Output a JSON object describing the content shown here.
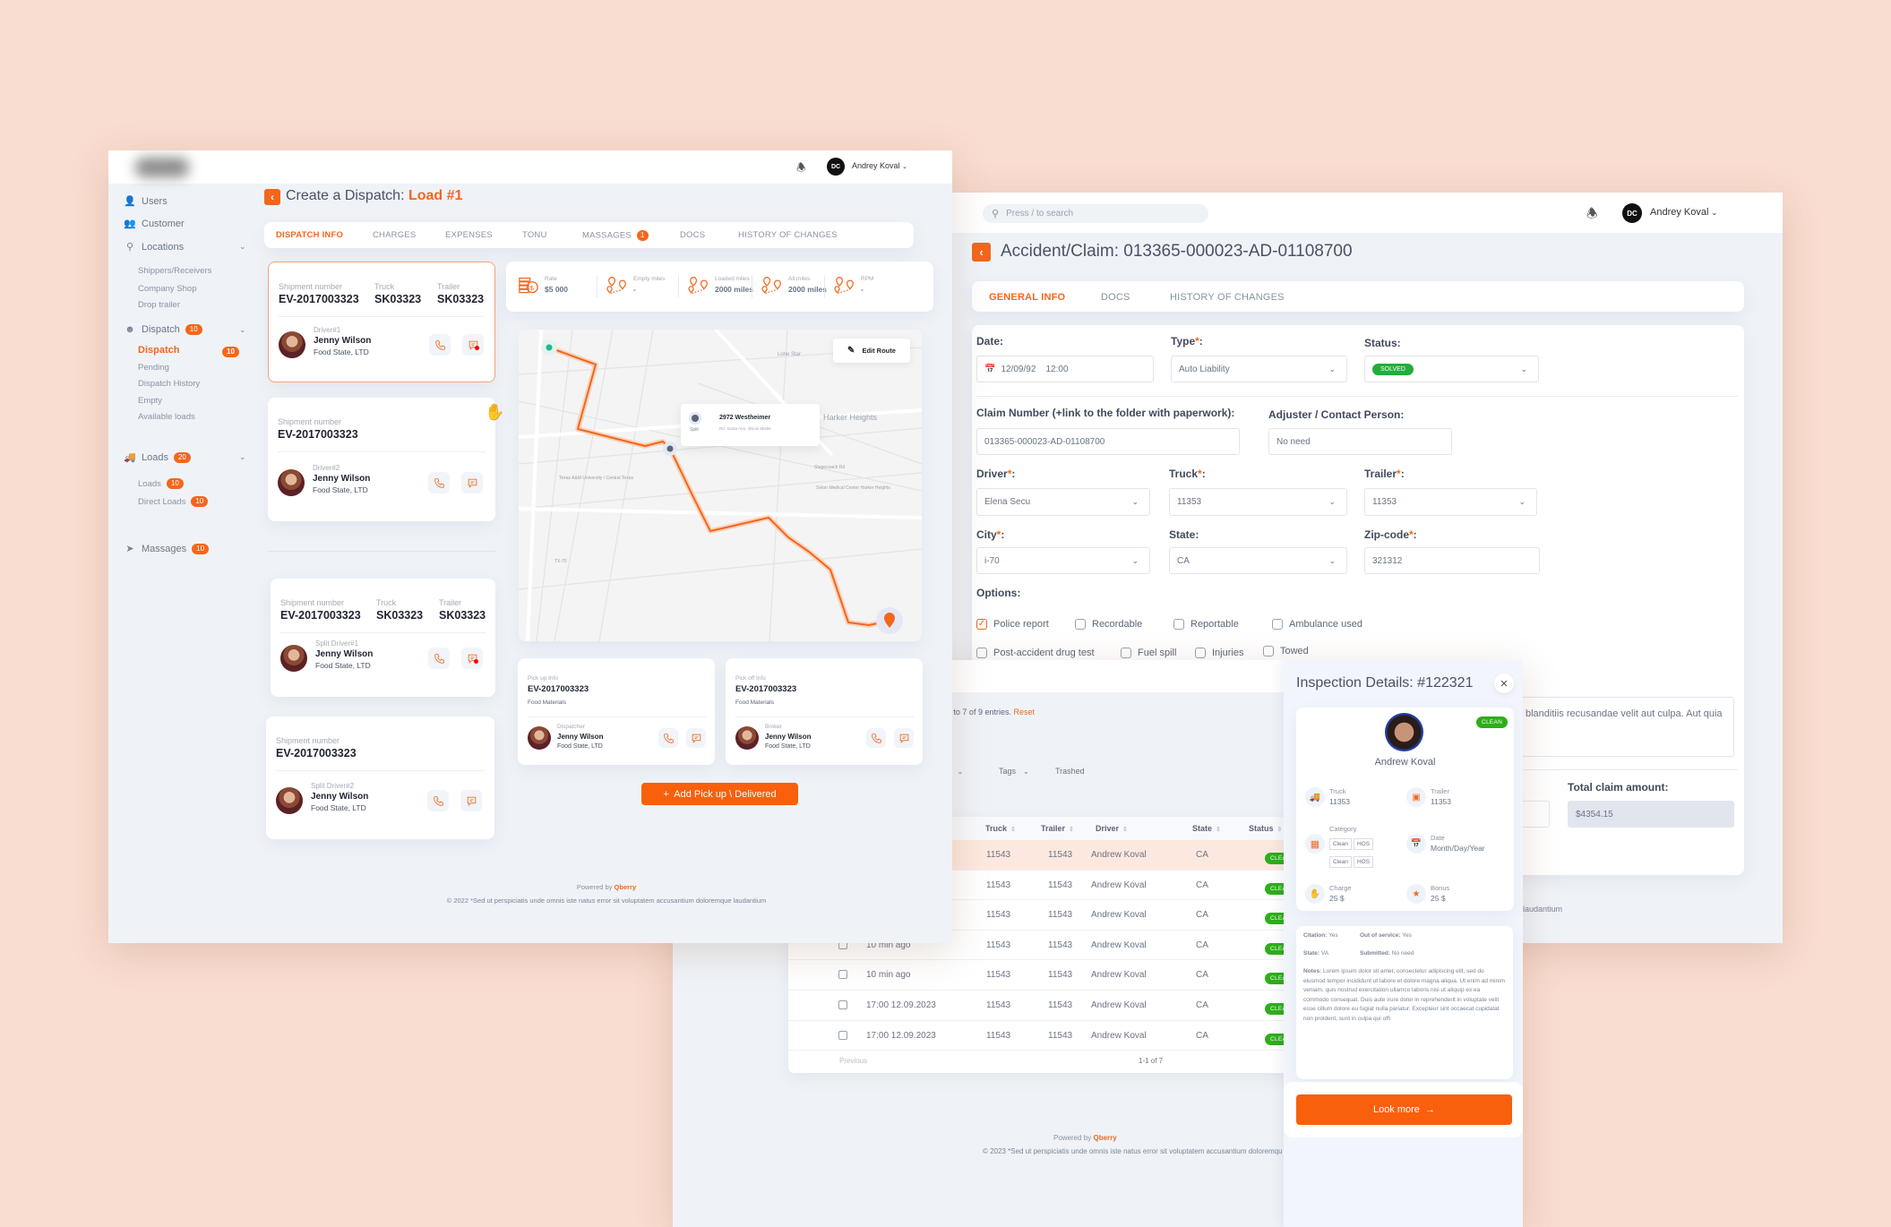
{
  "left_window": {
    "header": {
      "user_initials": "DC",
      "user_name": "Andrey Koval"
    },
    "sidebar": [
      {
        "label": "Users",
        "icon": "users-icon"
      },
      {
        "label": "Customer",
        "icon": "customer-icon"
      },
      {
        "label": "Locations",
        "icon": "location-icon",
        "chevron": true
      },
      {
        "label": "Shippers/Receivers",
        "sub": true
      },
      {
        "label": "Company Shop",
        "sub": true
      },
      {
        "label": "Drop trailer",
        "sub": true
      },
      {
        "label": "Dispatch",
        "icon": "dispatch-icon",
        "badge": "10",
        "chevron": true
      },
      {
        "label": "Dispatch",
        "sub": true,
        "active": true,
        "badge": "10"
      },
      {
        "label": "Pending",
        "sub": true
      },
      {
        "label": "Dispatch History",
        "sub": true
      },
      {
        "label": "Empty",
        "sub": true
      },
      {
        "label": "Available loads",
        "sub": true
      },
      {
        "label": "Loads",
        "icon": "truck-icon",
        "badge": "20",
        "chevron": true
      },
      {
        "label": "Loads",
        "sub": true,
        "badge": "10"
      },
      {
        "label": "Direct Loads",
        "sub": true,
        "badge": "10"
      },
      {
        "label": "Massages",
        "icon": "send-icon",
        "badge": "10"
      }
    ],
    "title_prefix": "Create a Dispatch:",
    "title_load": "Load #1",
    "tabs": [
      {
        "label": "DISPATCH INFO",
        "active": true
      },
      {
        "label": "CHARGES"
      },
      {
        "label": "EXPENSES"
      },
      {
        "label": "TONU"
      },
      {
        "label": "MASSAGES",
        "badge": "1"
      },
      {
        "label": "DOCS"
      },
      {
        "label": "HISTORY OF CHANGES"
      }
    ],
    "driver_cards": [
      {
        "shipment_label": "Shipment number",
        "shipment": "EV-2017003323",
        "truck_label": "Truck",
        "truck": "SK03323",
        "trailer_label": "Trailer",
        "trailer": "SK03323",
        "role": "Driver#1",
        "name": "Jenny Wilson",
        "company": "Food State, LTD",
        "unread": true,
        "selected": true
      },
      {
        "shipment_label": "Shipment number",
        "shipment": "EV-2017003323",
        "role": "Driver#2",
        "name": "Jenny Wilson",
        "company": "Food State, LTD"
      },
      {
        "shipment_label": "Shipment number",
        "shipment": "EV-2017003323",
        "truck_label": "Truck",
        "truck": "SK03323",
        "trailer_label": "Trailer",
        "trailer": "SK03323",
        "role": "Split Driver#1",
        "name": "Jenny Wilson",
        "company": "Food State, LTD",
        "unread": true
      },
      {
        "shipment_label": "Shipment number",
        "shipment": "EV-2017003323",
        "role": "Split Driver#2",
        "name": "Jenny Wilson",
        "company": "Food State, LTD"
      }
    ],
    "stats": [
      {
        "label": "Rate",
        "value": "$5 000",
        "icon": "money-icon"
      },
      {
        "label": "Empty miles",
        "value": "-",
        "icon": "route-icon"
      },
      {
        "label": "Loaded miles",
        "value": "2000 miles",
        "icon": "route-icon"
      },
      {
        "label": "All miles",
        "value": "2000 miles",
        "icon": "route-icon"
      },
      {
        "label": "RPM",
        "value": "-",
        "icon": "route-icon"
      }
    ],
    "map": {
      "edit_route": "Edit Route",
      "popup_title": "2972 Westheimer",
      "popup_sub": "Rd. Santa Ana, Illinois 85486",
      "popup_tag": "Split",
      "place_labels": [
        "Harker Heights",
        "Lone Star",
        "Texas A&M University / Central Texas",
        "Seton Medical Center Harker Heights",
        "Stagecoach Rd",
        "TX-75"
      ]
    },
    "stop_cards": [
      {
        "label": "Pick up Info",
        "number": "EV-2017003323",
        "cargo": "Food Materials",
        "role": "Dispatcher",
        "name": "Jenny Wilson",
        "company": "Food State, LTD"
      },
      {
        "label": "Pick off Info",
        "number": "EV-2017003323",
        "cargo": "Food Materials",
        "role": "Broker",
        "name": "Jenny Wilson",
        "company": "Food State, LTD"
      }
    ],
    "add_button": "+  Add Pick up \\ Delivered",
    "footer": {
      "powered_by": "Powered by",
      "brand": "Qberry",
      "copyright": "© 2022 *Sed ut perspiciatis unde omnis iste natus error sit voluptatem accusantium doloremque laudantium"
    }
  },
  "right_window": {
    "search_placeholder": "Press / to search",
    "header": {
      "user_initials": "DC",
      "user_name": "Andrey Koval"
    },
    "title": "Accident/Claim: 013365-000023-AD-01108700",
    "tabs": [
      {
        "label": "GENERAL INFO",
        "active": true
      },
      {
        "label": "DOCS"
      },
      {
        "label": "HISTORY OF CHANGES"
      }
    ],
    "form": {
      "date_label": "Date:",
      "date_value": "12/09/92    12:00",
      "type_label": "Type",
      "type_value": "Auto Liability",
      "status_label": "Status:",
      "status_value": "SOLVED",
      "claim_label": "Claim Number (+link to the folder with paperwork):",
      "claim_value": "013365-000023-AD-01108700",
      "adjuster_label": "Adjuster / Contact Person:",
      "adjuster_value": "No need",
      "driver_label": "Driver",
      "driver_value": "Elena Secu",
      "truck_label": "Truck",
      "truck_value": "11353",
      "trailer_label": "Trailer",
      "trailer_value": "11353",
      "city_label": "City",
      "city_value": "i-70",
      "state_label": "State:",
      "state_value": "CA",
      "zip_label": "Zip-code",
      "zip_value": "321312",
      "options_label": "Options:",
      "options": [
        {
          "label": "Police report",
          "checked": true
        },
        {
          "label": "Recordable",
          "checked": false
        },
        {
          "label": "Reportable",
          "checked": false
        },
        {
          "label": "Ambulance used",
          "checked": false
        },
        {
          "label": "Post-accident drug test",
          "checked": false
        },
        {
          "label": "Fuel spill",
          "checked": false
        },
        {
          "label": "Injuries",
          "checked": false
        },
        {
          "label": "Towed",
          "checked": false
        }
      ],
      "description_value": "blanditiis recusandae velit aut culpa. Aut quia",
      "total_label": "Total claim amount:",
      "total_value": "$4354.15"
    },
    "footer_fragment": "laudantium"
  },
  "middle_window": {
    "entries_text": "to 7 of 9 entries.",
    "reset": "Reset",
    "filters": [
      {
        "label": "us",
        "dropdown": true
      },
      {
        "label": "Tags",
        "dropdown": true
      },
      {
        "label": "Trashed"
      }
    ],
    "columns": [
      "Truck",
      "Trailer",
      "Driver",
      "State",
      "Status"
    ],
    "rows": [
      {
        "time": "",
        "truck": "11543",
        "trailer": "11543",
        "driver": "Andrew Koval",
        "state": "CA",
        "status": "CLEAN",
        "highlight": true
      },
      {
        "time": "",
        "truck": "11543",
        "trailer": "11543",
        "driver": "Andrew Koval",
        "state": "CA",
        "status": "CLEAN"
      },
      {
        "time": "",
        "truck": "11543",
        "trailer": "11543",
        "driver": "Andrew Koval",
        "state": "CA",
        "status": "CLEAN"
      },
      {
        "time": "10 min ago",
        "truck": "11543",
        "trailer": "11543",
        "driver": "Andrew Koval",
        "state": "CA",
        "status": "CLEAN"
      },
      {
        "time": "10 min ago",
        "truck": "11543",
        "trailer": "11543",
        "driver": "Andrew Koval",
        "state": "CA",
        "status": "CLEAN"
      },
      {
        "time": "17:00 12.09.2023",
        "truck": "11543",
        "trailer": "11543",
        "driver": "Andrew Koval",
        "state": "CA",
        "status": "CLEAN"
      },
      {
        "time": "17:00 12.09.2023",
        "truck": "11543",
        "trailer": "11543",
        "driver": "Andrew Koval",
        "state": "CA",
        "status": "CLEAN"
      }
    ],
    "pagination": {
      "previous": "Previous",
      "range": "1-1 of 7"
    },
    "footer": {
      "powered_by": "Powered by",
      "brand": "Qberry",
      "copyright": "© 2023 *Sed ut perspiciatis unde omnis iste natus error sit voluptatem accusantium doloremqu"
    },
    "inspection": {
      "title": "Inspection Details: #122321",
      "status": "CLEAN",
      "name": "Andrew Koval",
      "truck_label": "Truck",
      "truck": "11353",
      "trailer_label": "Trailer",
      "trailer": "11353",
      "category_label": "Category",
      "categories": [
        "Clean",
        "HOS",
        "Clean",
        "HOS"
      ],
      "date_label": "Date",
      "date": "Month/Day/Year",
      "charge_label": "Charge",
      "charge": "25 $",
      "bonus_label": "Bonus",
      "bonus": "25 $",
      "citation_label": "Citation:",
      "citation": "Yes",
      "oos_label": "Out of service:",
      "oos": "Yes",
      "state_label": "State:",
      "state": "VA",
      "submitted_label": "Submitted:",
      "submitted": "No need",
      "notes_label": "Notes:",
      "notes": "Lorem ipsum dolor sit amet, consectetur adipiscing elit, sed do eiusmod tempor incididunt ut labore et dolore magna aliqua. Ut enim ad minim veniam, quis nostrud exercitation ullamco laboris nisi ut aliquip ex ea commodo consequat. Duis aute irure dolor in reprehenderit in voluptate velit esse cillum dolore eu fugiat nulla pariatur. Excepteur sint occaecat cupidatat non proident, sunt in culpa qui offi",
      "look_more": "Look more  →"
    }
  }
}
